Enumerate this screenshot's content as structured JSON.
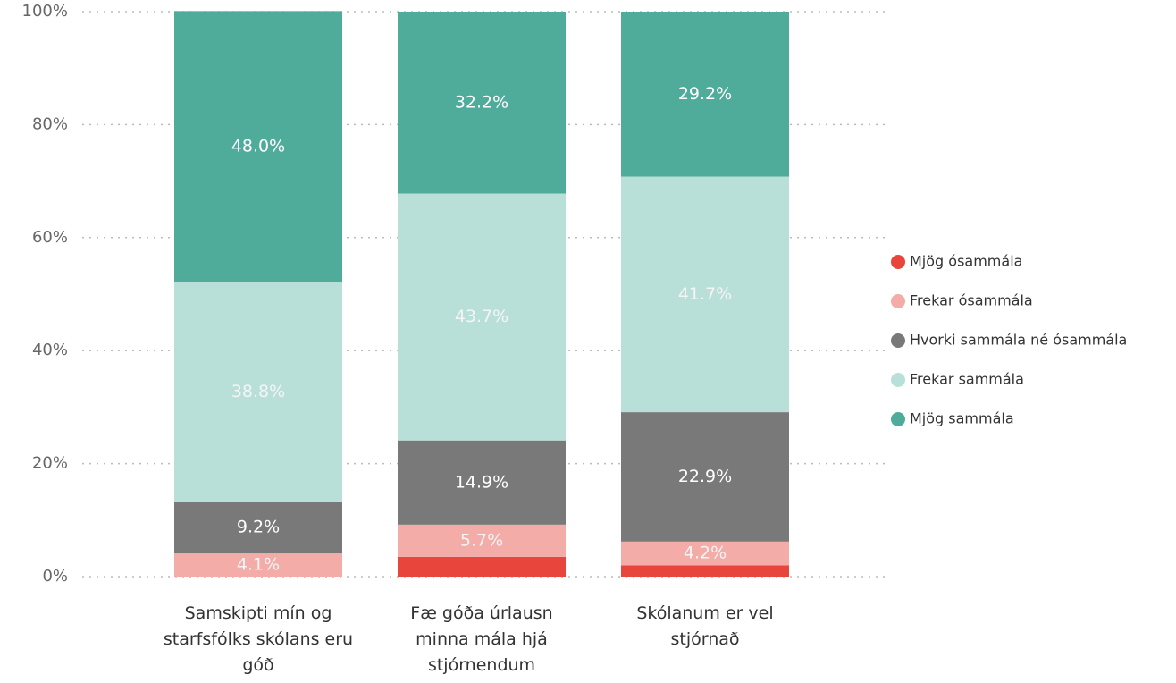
{
  "chart_data": {
    "type": "stacked_bar",
    "categories": [
      "Samskipti mín og starfsfólks skólans eru góð",
      "Fæ góða úrlausn minna mála hjá stjórnendum",
      "Skólanum er vel stjórnað"
    ],
    "series": [
      {
        "name": "Mjög ósammála",
        "color": "#e8453c",
        "values": [
          0,
          3.5,
          2.0
        ],
        "value_labels": [
          null,
          null,
          null
        ]
      },
      {
        "name": "Frekar ósammála",
        "color": "#f4aca8",
        "values": [
          4.1,
          5.7,
          4.2
        ],
        "value_labels": [
          "4.1%",
          "5.7%",
          "4.2%"
        ]
      },
      {
        "name": "Hvorki sammála né ósammála",
        "color": "#797979",
        "values": [
          9.2,
          14.9,
          22.9
        ],
        "value_labels": [
          "9.2%",
          "14.9%",
          "22.9%"
        ]
      },
      {
        "name": "Frekar sammála",
        "color": "#b9e0d8",
        "values": [
          38.8,
          43.7,
          41.7
        ],
        "value_labels": [
          "38.8%",
          "43.7%",
          "41.7%"
        ]
      },
      {
        "name": "Mjög sammála",
        "color": "#4fab9a",
        "values": [
          48.0,
          32.2,
          29.2
        ],
        "value_labels": [
          "48.0%",
          "32.2%",
          "29.2%"
        ]
      }
    ],
    "ylim": [
      0,
      100
    ],
    "yticks": [
      {
        "value": 0,
        "label": "0%"
      },
      {
        "value": 20,
        "label": "20%"
      },
      {
        "value": 40,
        "label": "40%"
      },
      {
        "value": 60,
        "label": "60%"
      },
      {
        "value": 80,
        "label": "80%"
      },
      {
        "value": 100,
        "label": "100%"
      }
    ],
    "grid": true,
    "legend": "right"
  }
}
